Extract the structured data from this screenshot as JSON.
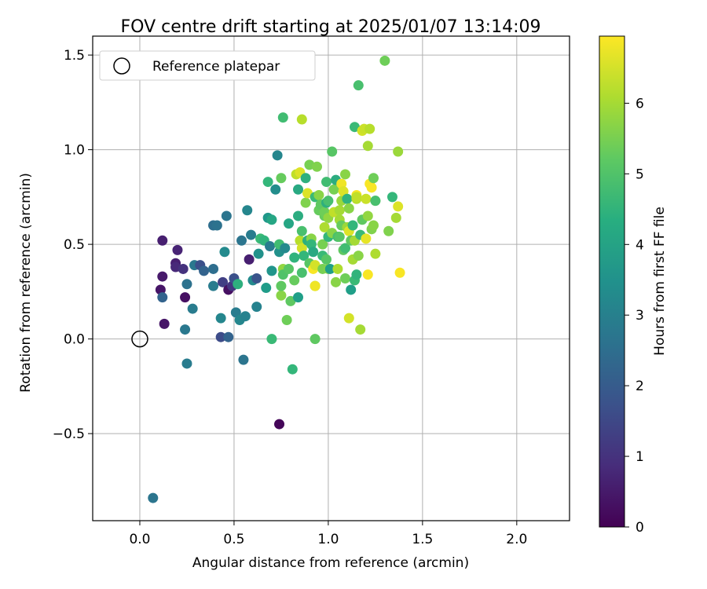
{
  "chart_data": {
    "type": "scatter",
    "title": "FOV centre drift starting at 2025/01/07 13:14:09",
    "xlabel": "Angular distance from reference (arcmin)",
    "ylabel": "Rotation from reference (arcmin)",
    "xlim": [
      -0.25,
      2.28
    ],
    "ylim": [
      -0.96,
      1.6
    ],
    "xticks": [
      "0.0",
      "0.5",
      "1.0",
      "1.5",
      "2.0"
    ],
    "yticks": [
      "−0.5",
      "0.0",
      "0.5",
      "1.0",
      "1.5"
    ],
    "grid": true,
    "legend": {
      "placement": "top-left",
      "entries": [
        "Reference platepar"
      ]
    },
    "reference": {
      "x": 0.0,
      "y": 0.0
    },
    "colorbar": {
      "label": "Hours from first FF file",
      "ticks": [
        "0",
        "1",
        "2",
        "3",
        "4",
        "5",
        "6"
      ],
      "range": [
        0,
        6.95
      ],
      "colormap": "viridis"
    },
    "points": [
      [
        0.07,
        -0.84,
        2.7
      ],
      [
        0.74,
        -0.45,
        0.1
      ],
      [
        0.25,
        -0.13,
        2.9
      ],
      [
        0.55,
        -0.11,
        2.7
      ],
      [
        0.81,
        -0.16,
        4.6
      ],
      [
        0.12,
        0.52,
        0.6
      ],
      [
        0.2,
        0.47,
        0.7
      ],
      [
        0.19,
        0.4,
        0.6
      ],
      [
        0.19,
        0.38,
        0.8
      ],
      [
        0.23,
        0.37,
        1.0
      ],
      [
        0.11,
        0.26,
        0.4
      ],
      [
        0.12,
        0.33,
        0.5
      ],
      [
        0.13,
        0.08,
        0.4
      ],
      [
        0.12,
        0.22,
        2.2
      ],
      [
        0.24,
        0.22,
        0.3
      ],
      [
        0.25,
        0.29,
        2.6
      ],
      [
        0.24,
        0.05,
        2.8
      ],
      [
        0.28,
        0.16,
        2.9
      ],
      [
        0.29,
        0.39,
        2.8
      ],
      [
        0.32,
        0.39,
        1.7
      ],
      [
        0.34,
        0.36,
        2.2
      ],
      [
        0.39,
        0.37,
        2.5
      ],
      [
        0.39,
        0.28,
        2.9
      ],
      [
        0.39,
        0.6,
        2.5
      ],
      [
        0.41,
        0.6,
        2.6
      ],
      [
        0.43,
        0.11,
        3.2
      ],
      [
        0.43,
        0.01,
        1.6
      ],
      [
        0.44,
        0.3,
        1.3
      ],
      [
        0.45,
        0.46,
        3.3
      ],
      [
        0.46,
        0.65,
        2.7
      ],
      [
        0.47,
        0.01,
        2.2
      ],
      [
        0.47,
        0.26,
        0.3
      ],
      [
        0.49,
        0.28,
        1.1
      ],
      [
        0.5,
        0.32,
        1.7
      ],
      [
        0.51,
        0.14,
        2.9
      ],
      [
        0.52,
        0.29,
        4.4
      ],
      [
        0.53,
        0.1,
        3.2
      ],
      [
        0.54,
        0.52,
        2.7
      ],
      [
        0.56,
        0.12,
        3.1
      ],
      [
        0.57,
        0.68,
        3.2
      ],
      [
        0.58,
        0.42,
        0.6
      ],
      [
        0.59,
        0.55,
        2.9
      ],
      [
        0.6,
        0.31,
        3.3
      ],
      [
        0.62,
        0.32,
        1.8
      ],
      [
        0.62,
        0.17,
        3.1
      ],
      [
        0.63,
        0.45,
        3.5
      ],
      [
        0.64,
        0.53,
        4.7
      ],
      [
        0.66,
        0.52,
        4.5
      ],
      [
        0.67,
        0.27,
        3.8
      ],
      [
        0.68,
        0.64,
        3.7
      ],
      [
        0.68,
        0.83,
        4.6
      ],
      [
        0.69,
        0.49,
        2.9
      ],
      [
        0.7,
        0.36,
        3.6
      ],
      [
        0.7,
        0.63,
        4.1
      ],
      [
        0.7,
        0.0,
        4.7
      ],
      [
        0.72,
        0.79,
        3.4
      ],
      [
        0.73,
        0.97,
        3.2
      ],
      [
        0.74,
        0.46,
        3.5
      ],
      [
        0.74,
        0.5,
        4.8
      ],
      [
        0.75,
        0.85,
        5.3
      ],
      [
        0.75,
        0.23,
        5.7
      ],
      [
        0.75,
        0.28,
        5.2
      ],
      [
        0.76,
        0.37,
        5.8
      ],
      [
        0.76,
        0.34,
        5.0
      ],
      [
        0.76,
        1.17,
        4.8
      ],
      [
        0.77,
        0.48,
        3.3
      ],
      [
        0.78,
        0.1,
        5.4
      ],
      [
        0.79,
        0.37,
        5.1
      ],
      [
        0.79,
        0.61,
        4.1
      ],
      [
        0.8,
        0.2,
        5.2
      ],
      [
        0.82,
        0.43,
        4.5
      ],
      [
        0.82,
        0.31,
        5.3
      ],
      [
        0.83,
        0.87,
        6.3
      ],
      [
        0.84,
        0.22,
        3.9
      ],
      [
        0.84,
        0.65,
        4.3
      ],
      [
        0.84,
        0.79,
        4.2
      ],
      [
        0.85,
        0.88,
        6.6
      ],
      [
        0.85,
        0.52,
        6.2
      ],
      [
        0.86,
        1.16,
        6.2
      ],
      [
        0.86,
        0.48,
        6.5
      ],
      [
        0.86,
        0.57,
        4.9
      ],
      [
        0.86,
        0.35,
        4.9
      ],
      [
        0.87,
        0.44,
        4.6
      ],
      [
        0.88,
        0.72,
        5.6
      ],
      [
        0.88,
        0.85,
        4.4
      ],
      [
        0.89,
        0.77,
        6.6
      ],
      [
        0.89,
        0.52,
        4.4
      ],
      [
        0.9,
        0.4,
        5.1
      ],
      [
        0.9,
        0.92,
        5.5
      ],
      [
        0.91,
        0.53,
        5.7
      ],
      [
        0.91,
        0.5,
        4.6
      ],
      [
        0.92,
        0.37,
        6.9
      ],
      [
        0.92,
        0.46,
        4.2
      ],
      [
        0.93,
        0.75,
        4.7
      ],
      [
        0.93,
        0.39,
        6.5
      ],
      [
        0.93,
        0.28,
        5.8
      ],
      [
        0.93,
        0.28,
        6.8
      ],
      [
        0.93,
        0.0,
        5.2
      ],
      [
        0.94,
        0.91,
        5.6
      ],
      [
        0.95,
        0.68,
        5.3
      ],
      [
        0.95,
        0.76,
        5.7
      ],
      [
        0.96,
        0.71,
        5.2
      ],
      [
        0.97,
        0.5,
        5.5
      ],
      [
        0.97,
        0.37,
        5.5
      ],
      [
        0.97,
        0.44,
        4.7
      ],
      [
        0.98,
        0.59,
        6.1
      ],
      [
        0.98,
        0.65,
        5.3
      ],
      [
        0.98,
        0.67,
        5.4
      ],
      [
        0.99,
        0.72,
        4.4
      ],
      [
        0.99,
        0.83,
        4.8
      ],
      [
        0.99,
        0.42,
        5.1
      ],
      [
        1.0,
        0.37,
        5.6
      ],
      [
        1.0,
        0.54,
        4.6
      ],
      [
        1.0,
        0.73,
        4.9
      ],
      [
        1.0,
        0.64,
        5.8
      ],
      [
        1.01,
        0.37,
        3.9
      ],
      [
        1.02,
        0.99,
        5.1
      ],
      [
        1.02,
        0.56,
        5.7
      ],
      [
        1.03,
        0.79,
        5.5
      ],
      [
        1.03,
        0.67,
        6.3
      ],
      [
        1.04,
        0.84,
        4.3
      ],
      [
        1.04,
        0.3,
        5.7
      ],
      [
        1.05,
        0.37,
        6.1
      ],
      [
        1.05,
        0.54,
        4.9
      ],
      [
        1.06,
        0.63,
        6.0
      ],
      [
        1.06,
        0.68,
        6.0
      ],
      [
        1.06,
        0.54,
        5.1
      ],
      [
        1.07,
        0.82,
        6.8
      ],
      [
        1.07,
        0.6,
        5.3
      ],
      [
        1.07,
        0.73,
        5.9
      ],
      [
        1.08,
        0.78,
        6.6
      ],
      [
        1.08,
        0.47,
        5.2
      ],
      [
        1.09,
        0.87,
        5.7
      ],
      [
        1.09,
        0.48,
        4.8
      ],
      [
        1.09,
        0.32,
        5.4
      ],
      [
        1.1,
        0.59,
        5.9
      ],
      [
        1.1,
        0.74,
        4.5
      ],
      [
        1.11,
        0.11,
        6.5
      ],
      [
        1.11,
        0.57,
        6.6
      ],
      [
        1.11,
        0.69,
        5.7
      ],
      [
        1.12,
        0.26,
        3.9
      ],
      [
        1.12,
        0.52,
        5.2
      ],
      [
        1.13,
        0.6,
        4.6
      ],
      [
        1.13,
        0.42,
        6.0
      ],
      [
        1.14,
        1.12,
        4.7
      ],
      [
        1.14,
        0.52,
        6.0
      ],
      [
        1.14,
        0.31,
        4.7
      ],
      [
        1.15,
        0.34,
        4.5
      ],
      [
        1.15,
        0.74,
        6.2
      ],
      [
        1.15,
        0.76,
        6.9
      ],
      [
        1.15,
        0.75,
        6.3
      ],
      [
        1.16,
        1.34,
        4.9
      ],
      [
        1.16,
        0.44,
        5.7
      ],
      [
        1.17,
        0.05,
        6.0
      ],
      [
        1.17,
        0.55,
        4.7
      ],
      [
        1.18,
        1.1,
        6.5
      ],
      [
        1.18,
        0.63,
        5.2
      ],
      [
        1.19,
        1.11,
        6.4
      ],
      [
        1.2,
        0.74,
        6.4
      ],
      [
        1.2,
        0.53,
        6.7
      ],
      [
        1.21,
        1.02,
        6.0
      ],
      [
        1.21,
        0.65,
        5.8
      ],
      [
        1.21,
        0.34,
        6.9
      ],
      [
        1.22,
        0.82,
        6.9
      ],
      [
        1.22,
        1.11,
        6.2
      ],
      [
        1.23,
        0.8,
        6.9
      ],
      [
        1.23,
        0.58,
        5.6
      ],
      [
        1.24,
        0.85,
        5.4
      ],
      [
        1.24,
        0.6,
        5.7
      ],
      [
        1.25,
        0.73,
        5.5
      ],
      [
        1.25,
        0.45,
        6.1
      ],
      [
        1.25,
        0.73,
        4.9
      ],
      [
        1.3,
        1.47,
        5.4
      ],
      [
        1.32,
        0.57,
        5.6
      ],
      [
        1.34,
        0.75,
        4.6
      ],
      [
        1.36,
        0.64,
        6.0
      ],
      [
        1.37,
        0.99,
        5.9
      ],
      [
        1.37,
        0.7,
        6.6
      ],
      [
        1.38,
        0.35,
        6.9
      ]
    ]
  }
}
